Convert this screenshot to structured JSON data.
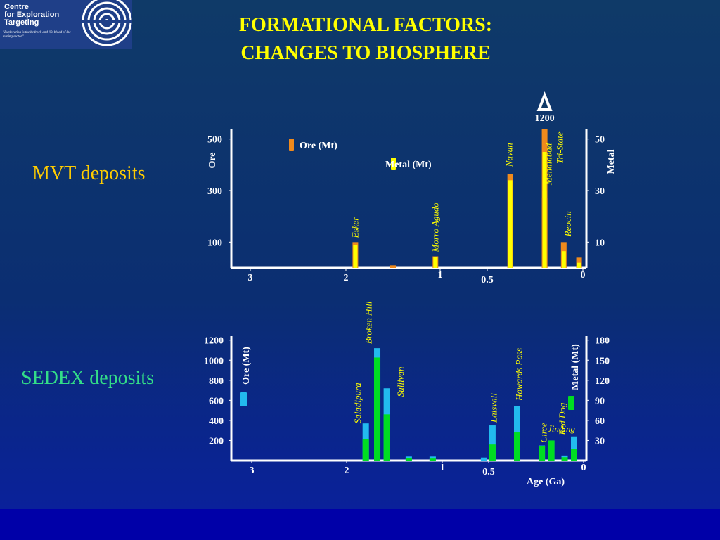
{
  "logo": {
    "name": "Centre\nfor Exploration\nTargeting",
    "tagline": "\"Exploration is the bedrock and life blood of the mining sector\""
  },
  "title": {
    "line1": "FORMATIONAL FACTORS:",
    "line2": "CHANGES TO BIOSPHERE"
  },
  "labels": {
    "mvt": "MVT deposits",
    "sedex": "SEDEX deposits"
  },
  "colors": {
    "ore_mvt": "#f08a1c",
    "metal_mvt": "#ffff00",
    "ore_sedex": "#22bbee",
    "metal_sedex": "#00dd22",
    "title": "#ffff00",
    "mvt_label": "#ffcc00",
    "sedex_label": "#33dd88"
  },
  "chart_data": [
    {
      "type": "bar",
      "name": "MVT",
      "x_axis_direction": "reversed",
      "x_ticks": [
        {
          "value": 3,
          "label": "3"
        },
        {
          "value": 2,
          "label": "2"
        },
        {
          "value": 1,
          "label": "1"
        },
        {
          "value": 0.5,
          "label": "0.5"
        },
        {
          "value": 0,
          "label": "0"
        }
      ],
      "y_left": {
        "label": "Ore",
        "ticks": [
          500,
          300,
          100
        ],
        "ylim": [
          0,
          540
        ]
      },
      "y_right": {
        "label": "Metal",
        "ticks": [
          50,
          30,
          10
        ],
        "ylim": [
          0,
          54
        ]
      },
      "legend": [
        {
          "label": "Ore (Mt)",
          "series": "ore"
        },
        {
          "label": "Metal (Mt)",
          "series": "metal"
        }
      ],
      "break_marker": "1200",
      "deposits": [
        {
          "age": 1.9,
          "ore": 100,
          "metal": 9,
          "label": "Esker"
        },
        {
          "age": 1.5,
          "ore": 10,
          "metal": 0,
          "label": ""
        },
        {
          "age": 1.05,
          "ore": 45,
          "metal": 4.2,
          "label": "Morro Agudo"
        },
        {
          "age": 0.38,
          "ore": 365,
          "metal": 34,
          "label": "Navan"
        },
        {
          "age": 0.2,
          "ore": 540,
          "metal": 45,
          "label": "Tri-State"
        },
        {
          "age": 0.2,
          "ore": 270,
          "metal": 30,
          "label": "Mehdiabad"
        },
        {
          "age": 0.1,
          "ore": 100,
          "metal": 6.5,
          "label": "Reocin"
        },
        {
          "age": 0.02,
          "ore": 40,
          "metal": 2,
          "label": ""
        }
      ]
    },
    {
      "type": "bar",
      "name": "SEDEX",
      "x_axis_direction": "reversed",
      "x_label": "Age (Ga)",
      "x_ticks": [
        {
          "value": 3,
          "label": "3"
        },
        {
          "value": 2,
          "label": "2"
        },
        {
          "value": 1,
          "label": "1"
        },
        {
          "value": 0.5,
          "label": "0.5"
        },
        {
          "value": 0,
          "label": "0"
        }
      ],
      "y_left": {
        "label": "Ore (Mt)",
        "ticks": [
          1200,
          1000,
          800,
          600,
          400,
          200
        ],
        "ylim": [
          0,
          1240
        ]
      },
      "y_right": {
        "label": "Metal (Mt)",
        "ticks": [
          180,
          150,
          120,
          90,
          60,
          30
        ],
        "ylim": [
          0,
          186
        ]
      },
      "legend": [
        {
          "label": "Ore (Mt)",
          "series": "ore"
        },
        {
          "label": "Metal (Mt)",
          "series": "metal"
        }
      ],
      "deposits": [
        {
          "age": 1.8,
          "ore": 370,
          "metal": 32,
          "label": "Saladipura"
        },
        {
          "age": 1.68,
          "ore": 1120,
          "metal": 154,
          "label": "Broken Hill"
        },
        {
          "age": 1.58,
          "ore": 720,
          "metal": 69,
          "label": "Sullivan"
        },
        {
          "age": 1.35,
          "ore": 40,
          "metal": 4,
          "label": ""
        },
        {
          "age": 1.1,
          "ore": 40,
          "metal": 3,
          "label": ""
        },
        {
          "age": 0.55,
          "ore": 30,
          "metal": 0,
          "label": ""
        },
        {
          "age": 0.48,
          "ore": 350,
          "metal": 24,
          "label": "Laisvall"
        },
        {
          "age": 0.35,
          "ore": 540,
          "metal": 42,
          "label": "Howards Pass"
        },
        {
          "age": 0.22,
          "ore": 150,
          "metal": 22,
          "label": "Circe"
        },
        {
          "age": 0.17,
          "ore": 200,
          "metal": 30,
          "label": "Red Dog"
        },
        {
          "age": 0.1,
          "ore": 50,
          "metal": 5,
          "label": ""
        },
        {
          "age": 0.05,
          "ore": 240,
          "metal": 17,
          "label": "Jinding"
        }
      ]
    }
  ]
}
